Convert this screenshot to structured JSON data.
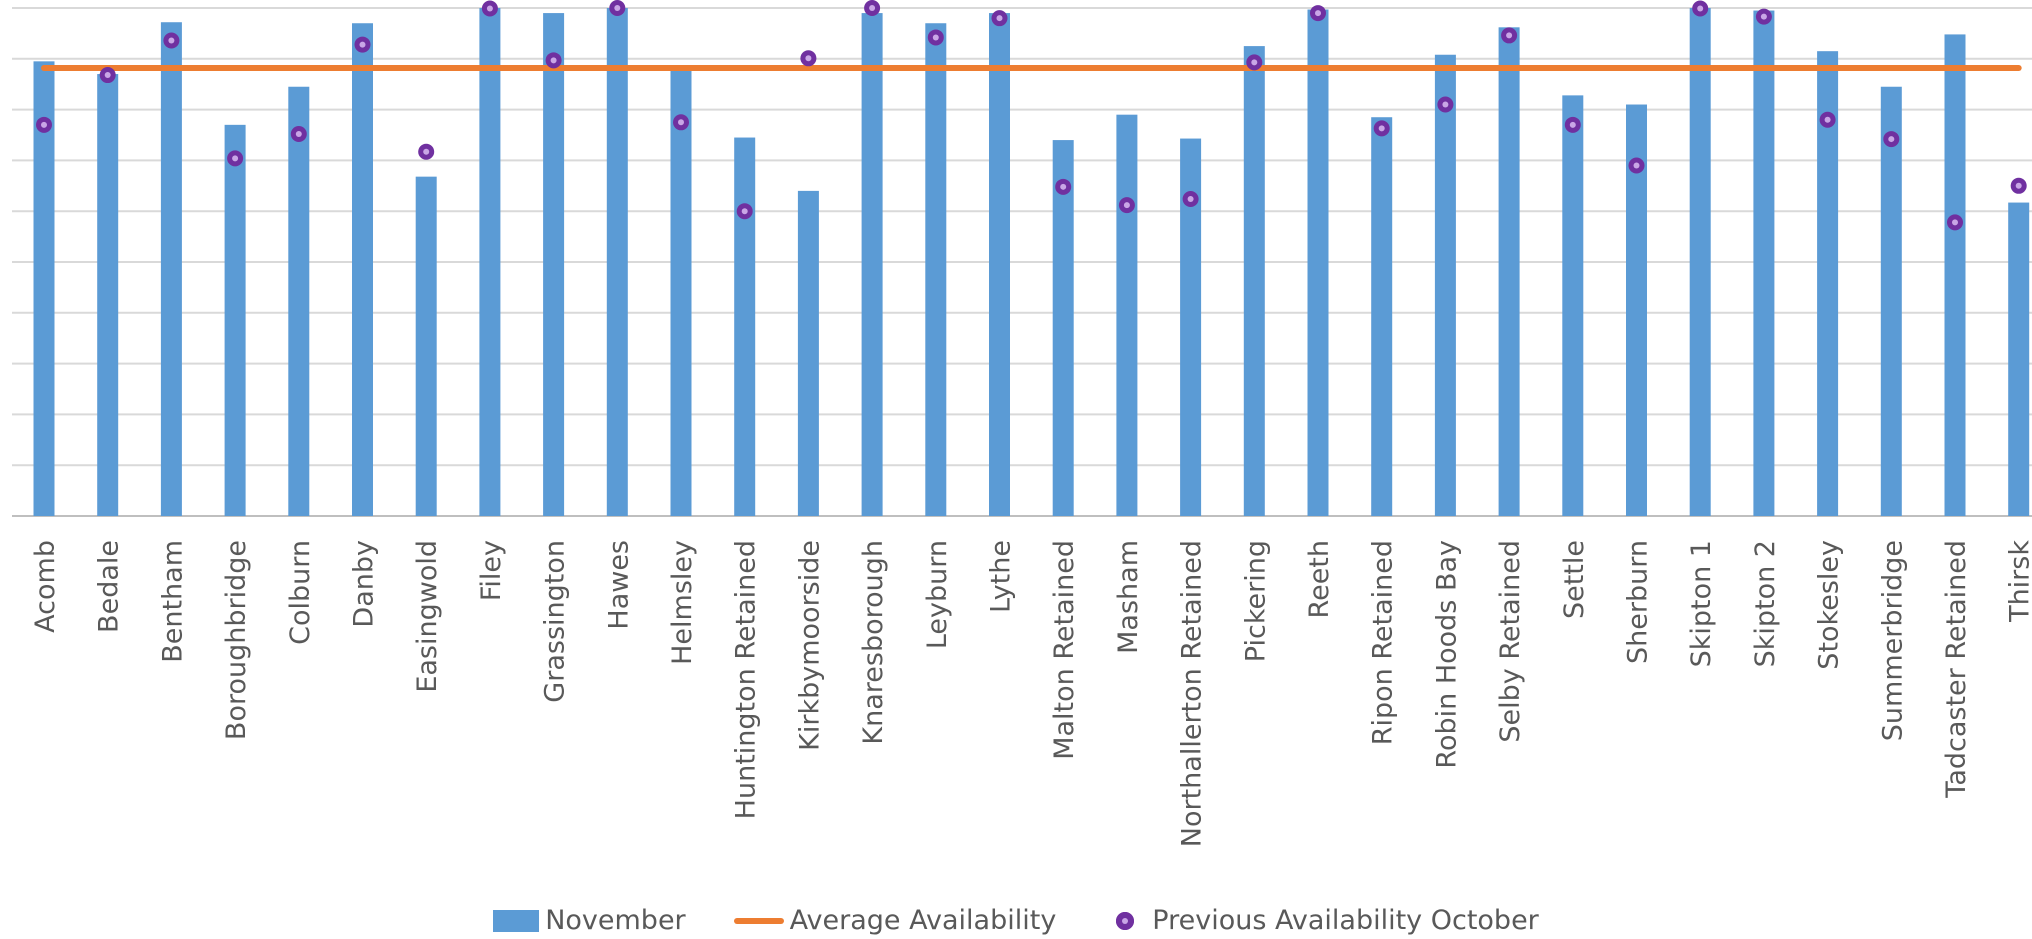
{
  "chart_data": {
    "type": "bar",
    "title": "",
    "xlabel": "",
    "ylabel": "",
    "ylim": [
      0,
      100
    ],
    "grid": true,
    "legend_position": "bottom",
    "categories": [
      "Acomb",
      "Bedale",
      "Bentham",
      "Boroughbridge",
      "Colburn",
      "Danby",
      "Easingwold",
      "Filey",
      "Grassington",
      "Hawes",
      "Helmsley",
      "Huntington Retained",
      "Kirkbymoorside",
      "Knaresborough",
      "Leyburn",
      "Lythe",
      "Malton Retained",
      "Masham",
      "Northallerton Retained",
      "Pickering",
      "Reeth",
      "Ripon Retained",
      "Robin Hoods Bay",
      "Selby Retained",
      "Settle",
      "Sherburn",
      "Skipton 1",
      "Skipton 2",
      "Stokesley",
      "Summerbridge",
      "Tadcaster Retained",
      "Thirsk"
    ],
    "series": [
      {
        "name": "November",
        "kind": "bar",
        "color": "#5B9BD5",
        "values": [
          89.5,
          87.0,
          97.2,
          77.0,
          84.5,
          97.0,
          66.8,
          100,
          99.0,
          100,
          88.5,
          74.5,
          64.0,
          99.0,
          97.0,
          99.0,
          74.0,
          79.0,
          74.3,
          92.5,
          99.7,
          78.5,
          90.8,
          96.2,
          82.8,
          81.0,
          100,
          99.5,
          91.5,
          84.5,
          94.8,
          61.7
        ]
      },
      {
        "name": "Average Availability",
        "kind": "line",
        "color": "#ED7D31",
        "values": [
          88.2,
          88.2,
          88.2,
          88.2,
          88.2,
          88.2,
          88.2,
          88.2,
          88.2,
          88.2,
          88.2,
          88.2,
          88.2,
          88.2,
          88.2,
          88.2,
          88.2,
          88.2,
          88.2,
          88.2,
          88.2,
          88.2,
          88.2,
          88.2,
          88.2,
          88.2,
          88.2,
          88.2,
          88.2,
          88.2,
          88.2,
          88.2
        ]
      },
      {
        "name": "Previous Availability October",
        "kind": "scatter",
        "color": "#7030A0",
        "values": [
          77.0,
          86.8,
          93.6,
          70.4,
          75.2,
          92.8,
          71.7,
          99.9,
          89.7,
          100,
          77.5,
          60.0,
          90.1,
          100,
          94.2,
          98.0,
          64.8,
          61.2,
          62.4,
          89.3,
          99.0,
          76.3,
          81.0,
          94.6,
          77.0,
          69.0,
          99.9,
          98.3,
          78.0,
          74.2,
          57.8,
          65.0
        ]
      }
    ]
  },
  "legend": {
    "bar_label": "November",
    "line_label": "Average Availability",
    "dot_label": "Previous Availability October"
  }
}
